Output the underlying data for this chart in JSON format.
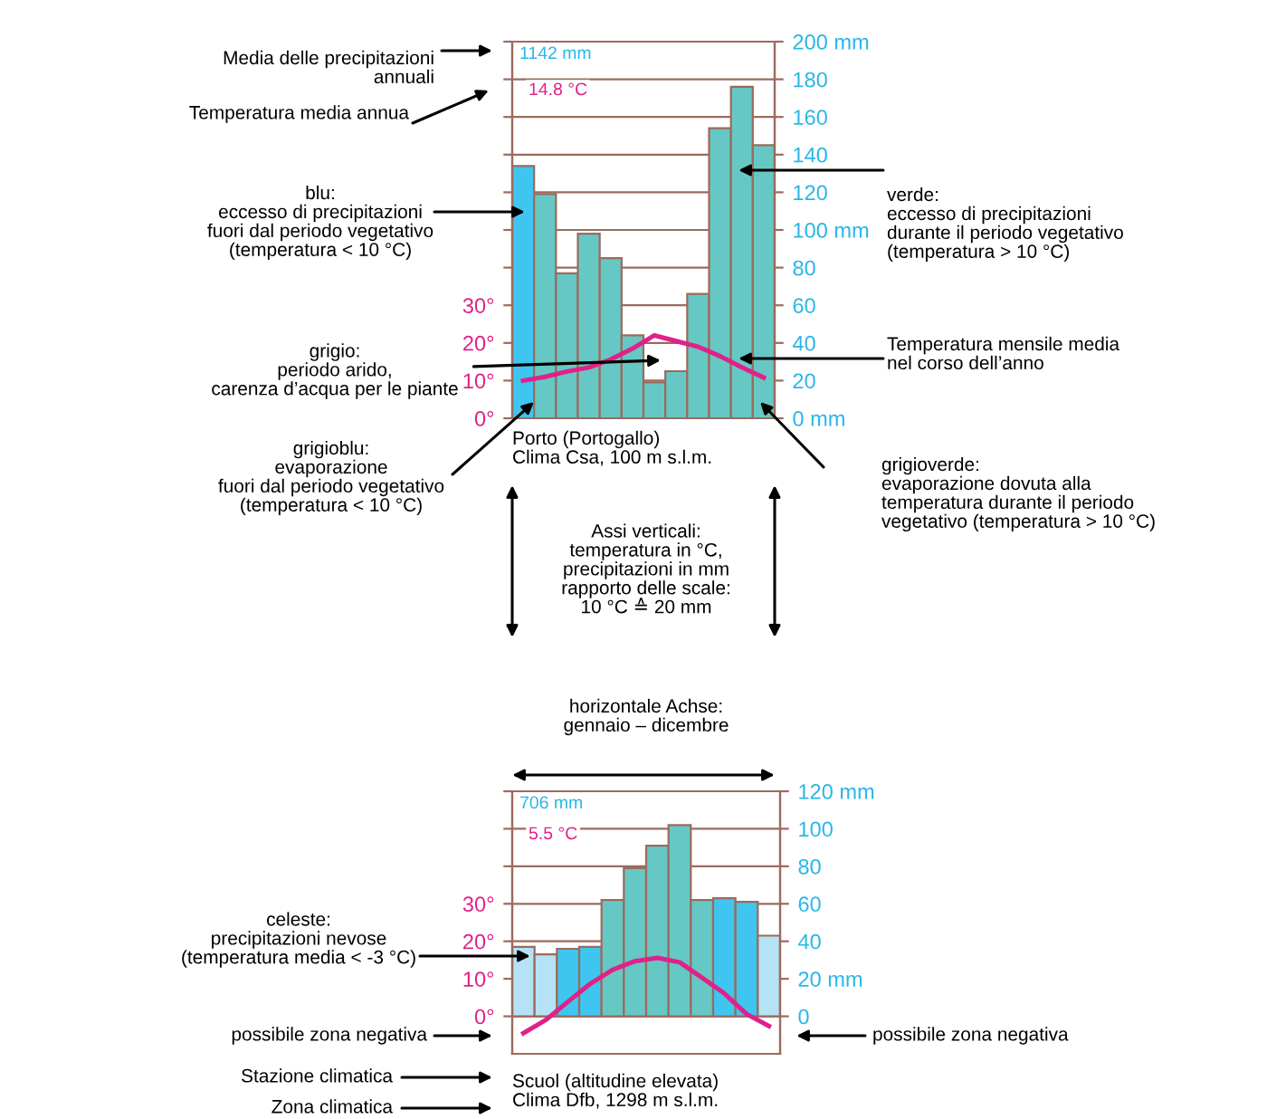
{
  "chart_data": [
    {
      "type": "bar",
      "categories": [
        null,
        null,
        null,
        null,
        null,
        null,
        null,
        null,
        null,
        null,
        null,
        null
      ],
      "series": [
        {
          "axis": "y2",
          "colors": [
            "#3ec6f0",
            "#66c8c4",
            "#66c8c4",
            "#66c8c4",
            "#66c8c4",
            "#66c8c4",
            "#66c8c4",
            "#66c8c4",
            "#66c8c4",
            "#66c8c4",
            "#66c8c4",
            "#66c8c4"
          ],
          "values": [
            134,
            119,
            77,
            98,
            85,
            44,
            19,
            25,
            66,
            154,
            176,
            145
          ]
        },
        {
          "type": "line",
          "axis": "y",
          "color": "#e0218a",
          "values": [
            10,
            11,
            12.4,
            13.5,
            15.6,
            18.5,
            22,
            20.5,
            19,
            16.5,
            13.5,
            10.8
          ]
        }
      ],
      "ylim": [
        0,
        100
      ],
      "yticks": [
        {
          "value": 0,
          "label": "0°"
        },
        {
          "value": 10,
          "label": "10°"
        },
        {
          "value": 20,
          "label": "20°"
        },
        {
          "value": 30,
          "label": "30°"
        },
        {
          "value": 40,
          "label": null
        },
        {
          "value": 50,
          "label": null
        },
        {
          "value": 60,
          "label": null
        },
        {
          "value": 70,
          "label": null
        },
        {
          "value": 80,
          "label": null
        },
        {
          "value": 90,
          "label": null
        },
        {
          "value": 100,
          "label": null
        }
      ],
      "y2lim": [
        0,
        200
      ],
      "y2ticks": [
        {
          "value": 0,
          "label": "0 mm"
        },
        20,
        40,
        60,
        80,
        {
          "value": 100,
          "label": "100 mm"
        },
        120,
        140,
        160,
        180,
        {
          "value": 200,
          "label": "200 mm"
        }
      ],
      "grid": "y",
      "line_style": "solid",
      "marker": "none",
      "annotations": [
        "1142 mm",
        "14.8 °C",
        "Media delle precipitazioni\nannuali",
        "Temperatura media annua",
        "blu:\neccesso di precipitazioni\nfuori dal periodo vegetativo\n(temperatura < 10 °C)",
        "grigio:\nperiodo arido,\ncarenza d’acqua per le piante",
        "grigioblu:\nevaporazione\nfuori dal periodo vegetativo\n(temperatura < 10 °C)",
        "verde:\neccesso di precipitazioni\ndurante il periodo vegetativo\n(temperatura > 10 °C)",
        "Temperatura mensile media\nnel corso dell’anno",
        "grigioverde:\nevaporazione dovuta alla\ntemperatura durante il periodo\nvegetativo (temperatura > 10 °C)",
        "Porto (Portogallo)\nClima Csa, 100 m s.l.m.",
        "Assi verticali:\ntemperatura in °C,\nprecipitazioni in mm\nrapporto delle scale:\n10 °C ≙ 20 mm"
      ]
    },
    {
      "type": "bar",
      "categories": [
        null,
        null,
        null,
        null,
        null,
        null,
        null,
        null,
        null,
        null,
        null,
        null
      ],
      "series": [
        {
          "axis": "y2",
          "colors": [
            "#b5e3f5",
            "#b5e3f5",
            "#3ec6f0",
            "#3ec6f0",
            "#66c8c4",
            "#66c8c4",
            "#66c8c4",
            "#66c8c4",
            "#66c8c4",
            "#3ec6f0",
            "#3ec6f0",
            "#b5e3f5"
          ],
          "values": [
            37,
            33,
            36,
            37,
            62,
            79,
            91,
            102,
            62,
            63,
            61,
            43
          ]
        },
        {
          "type": "line",
          "axis": "y",
          "color": "#e0218a",
          "values": [
            -4.5,
            -1,
            3.9,
            8.7,
            12.4,
            14.7,
            15.6,
            14.4,
            10.3,
            6.1,
            0.6,
            -2.6
          ]
        }
      ],
      "ylim": [
        -10,
        60
      ],
      "yticks": [
        {
          "value": 0,
          "label": "0°"
        },
        {
          "value": 10,
          "label": "10°"
        },
        {
          "value": 20,
          "label": "20°"
        },
        {
          "value": 30,
          "label": "30°"
        },
        {
          "value": 40,
          "label": null
        },
        {
          "value": 50,
          "label": null
        },
        {
          "value": 60,
          "label": null
        }
      ],
      "y2lim": [
        -20,
        120
      ],
      "y2ticks": [
        0,
        {
          "value": 20,
          "label": "20 mm"
        },
        40,
        60,
        80,
        100,
        {
          "value": 120,
          "label": "120 mm"
        }
      ],
      "grid": "y",
      "line_style": "solid",
      "marker": "none",
      "annotations": [
        "706 mm",
        "5.5 °C",
        "horizontale Achse:\ngennaio – dicembre",
        "celeste:\nprecipitazioni nevose\n(temperatura media < -3 °C)",
        "possibile zona negativa",
        "possibile zona negativa",
        "Stazione climatica",
        "Zona climatica",
        "Scuol (altitudine elevata)\nClima Dfb, 1298 m s.l.m."
      ]
    }
  ]
}
